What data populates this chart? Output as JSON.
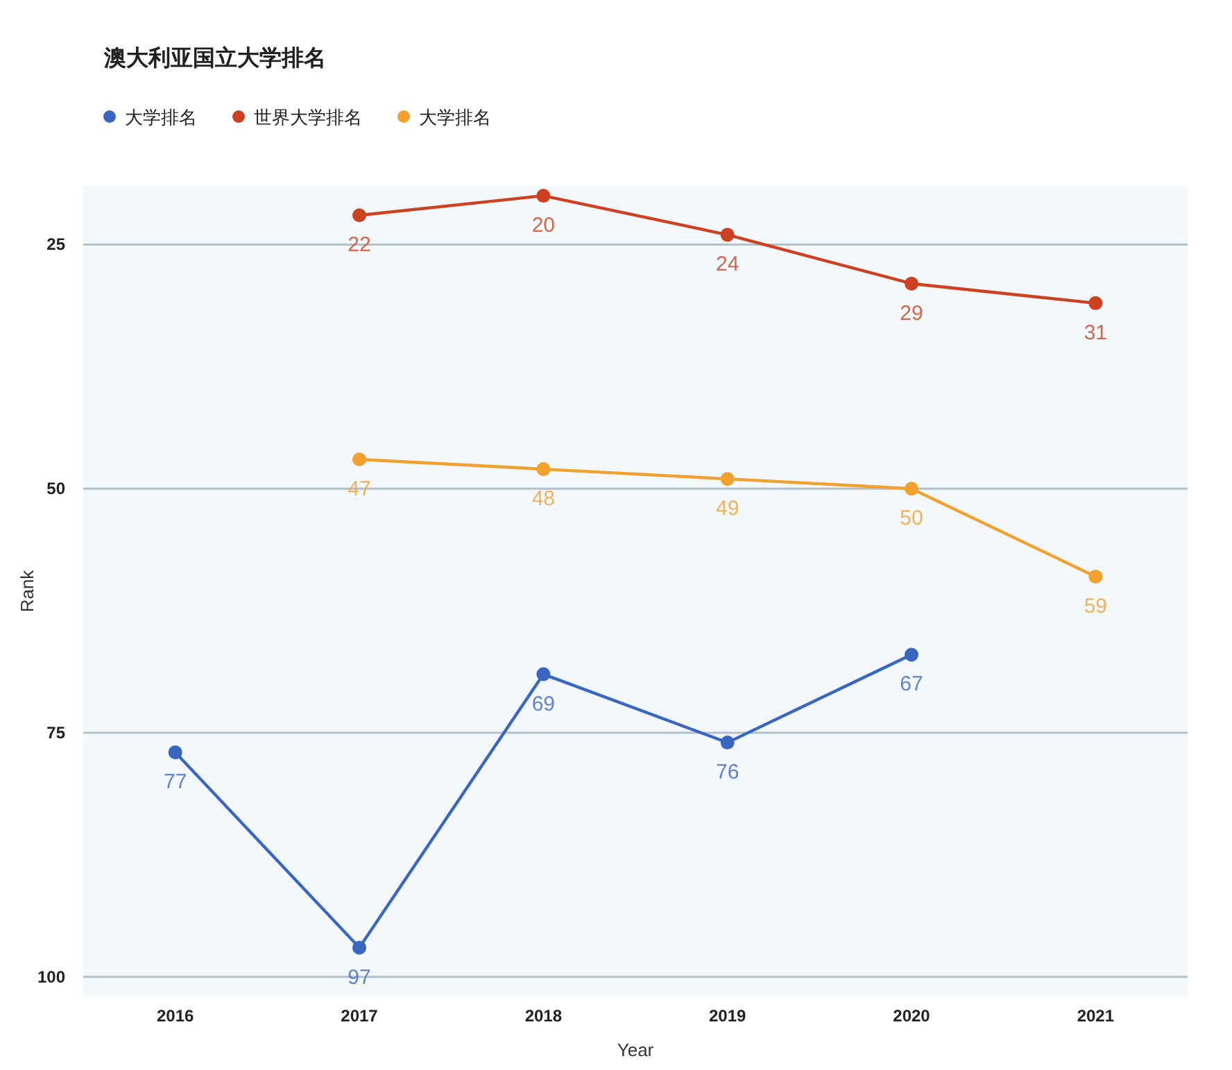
{
  "chart_data": {
    "type": "line",
    "title": "澳大利亚国立大学排名",
    "xlabel": "Year",
    "ylabel": "Rank",
    "categories": [
      "2016",
      "2017",
      "2018",
      "2019",
      "2020",
      "2021"
    ],
    "ylim": [
      102,
      19
    ],
    "yticks": [
      25,
      50,
      75,
      100
    ],
    "grid": "y",
    "legend": "top",
    "marker": "circle",
    "line_style": "solid",
    "data_labels": true,
    "series": [
      {
        "name": "大学排名",
        "color": "#3a66c0",
        "values": [
          77,
          97,
          69,
          76,
          67,
          null
        ]
      },
      {
        "name": "世界大学排名",
        "color": "#cc4122",
        "values": [
          null,
          22,
          20,
          24,
          29,
          31
        ]
      },
      {
        "name": "大学排名",
        "color": "#f0a12e",
        "values": [
          null,
          47,
          48,
          49,
          50,
          59
        ]
      }
    ]
  }
}
